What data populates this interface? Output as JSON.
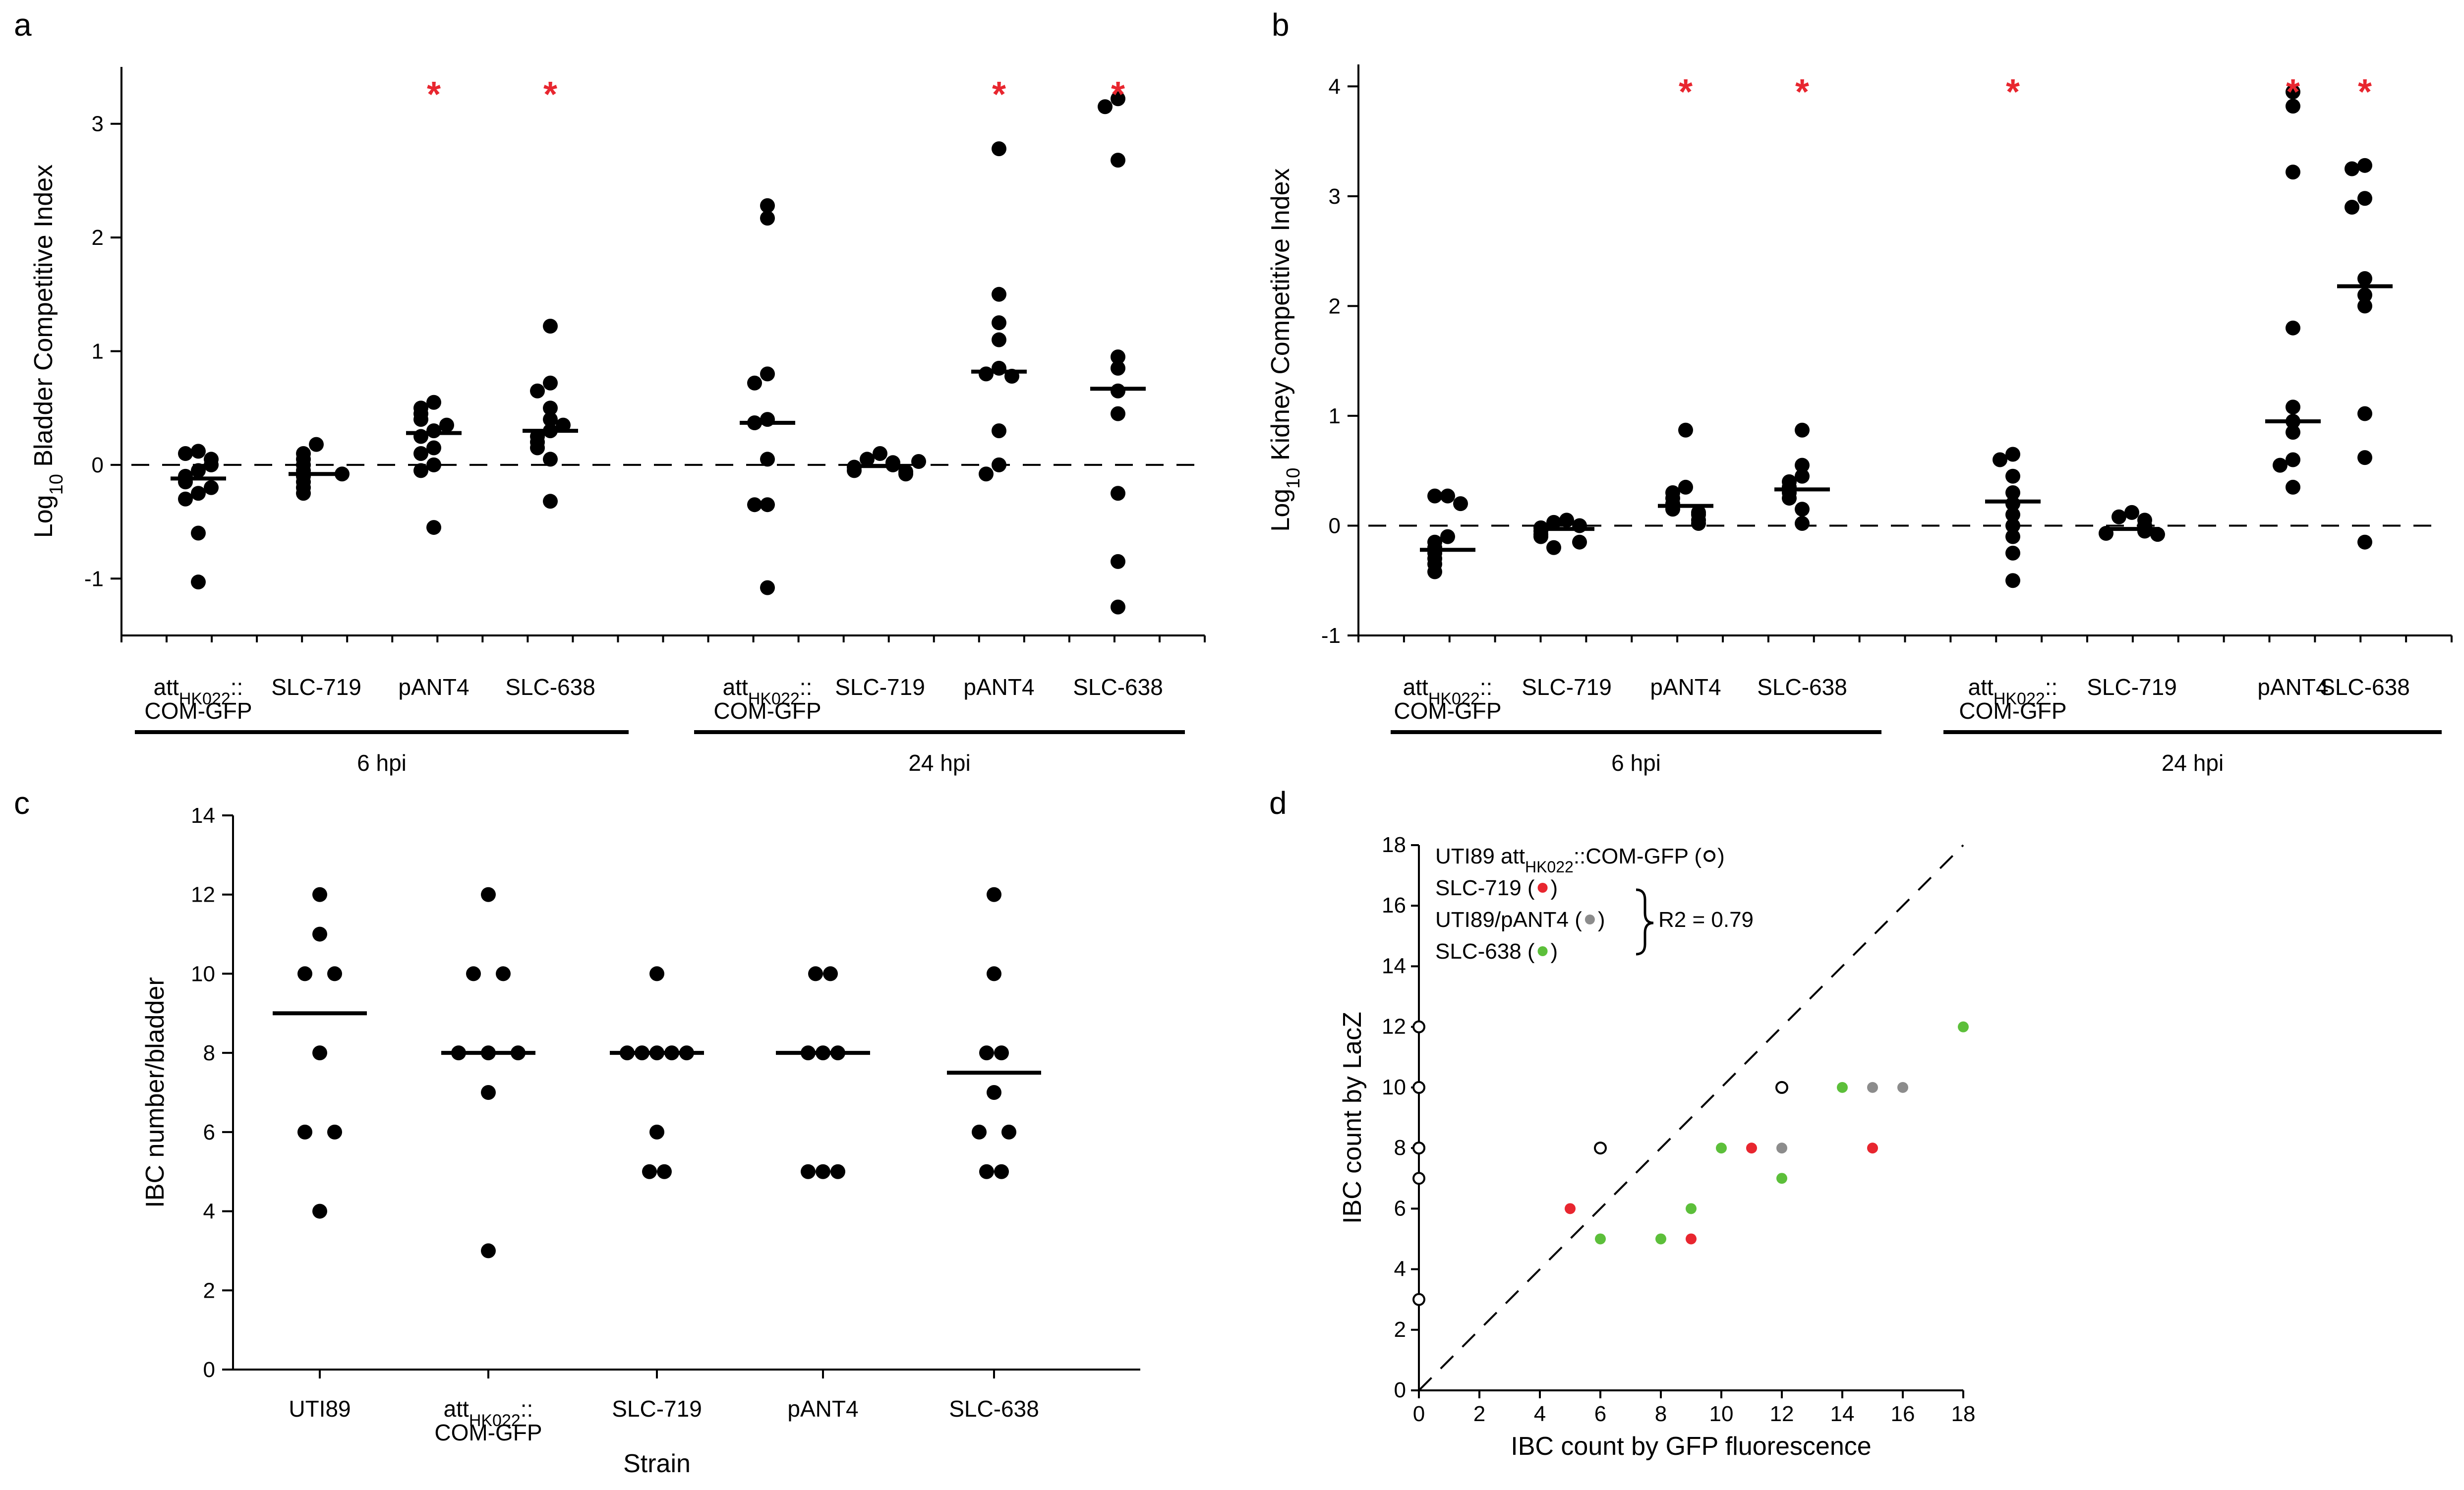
{
  "chart_data": [
    {
      "panel": "a",
      "type": "scatter",
      "ylabel_prefix": "Log",
      "ylabel_sub": "10",
      "ylabel_main": " Bladder Competitive Index",
      "ylim": [
        -1.5,
        3.5
      ],
      "yticks": [
        -1,
        0,
        1,
        2,
        3
      ],
      "yticklabels": [
        "-1",
        "0",
        "1",
        "2",
        "3"
      ],
      "groups": [
        {
          "label": "6 hpi",
          "categories": [
            {
              "label_lines": [
                {
                  "main": "att",
                  "sub": "HK022",
                  "tail": "::"
                },
                {
                  "main": "COM-GFP",
                  "sub": "",
                  "tail": ""
                }
              ],
              "values": [
                0.12,
                0.1,
                0.05,
                -0.05,
                -0.1,
                -0.15,
                -0.25,
                -0.3,
                -0.6,
                -1.03,
                0.0,
                -0.2
              ],
              "median": -0.12,
              "significant": false
            },
            {
              "label_lines": [
                {
                  "main": "SLC-719",
                  "sub": "",
                  "tail": ""
                }
              ],
              "values": [
                0.18,
                0.1,
                0.05,
                0.0,
                -0.05,
                -0.1,
                -0.15,
                -0.2,
                -0.25,
                -0.08
              ],
              "median": -0.08,
              "significant": false
            },
            {
              "label_lines": [
                {
                  "main": "pANT4",
                  "sub": "",
                  "tail": ""
                }
              ],
              "values": [
                0.55,
                0.5,
                0.45,
                0.4,
                0.3,
                0.25,
                0.15,
                0.1,
                0.0,
                -0.05,
                -0.55,
                0.35
              ],
              "median": 0.28,
              "significant": true
            },
            {
              "label_lines": [
                {
                  "main": "SLC-638",
                  "sub": "",
                  "tail": ""
                }
              ],
              "values": [
                1.22,
                0.72,
                0.65,
                0.5,
                0.4,
                0.3,
                0.25,
                0.2,
                0.15,
                0.05,
                -0.32,
                0.35
              ],
              "median": 0.3,
              "significant": true
            }
          ]
        },
        {
          "label": "24 hpi",
          "categories": [
            {
              "label_lines": [
                {
                  "main": "att",
                  "sub": "HK022",
                  "tail": "::"
                },
                {
                  "main": "COM-GFP",
                  "sub": "",
                  "tail": ""
                }
              ],
              "values": [
                2.28,
                2.17,
                0.8,
                0.72,
                0.4,
                0.37,
                0.05,
                -0.35,
                -0.35,
                -1.08
              ],
              "median": 0.37,
              "significant": false
            },
            {
              "label_lines": [
                {
                  "main": "SLC-719",
                  "sub": "",
                  "tail": ""
                }
              ],
              "values": [
                0.1,
                0.05,
                0.02,
                0.0,
                -0.02,
                -0.05,
                -0.06,
                -0.08,
                0.03
              ],
              "median": -0.01,
              "significant": false
            },
            {
              "label_lines": [
                {
                  "main": "pANT4",
                  "sub": "",
                  "tail": ""
                }
              ],
              "values": [
                2.78,
                1.5,
                1.25,
                1.1,
                0.85,
                0.8,
                0.78,
                0.3,
                0.0,
                -0.08
              ],
              "median": 0.82,
              "significant": true
            },
            {
              "label_lines": [
                {
                  "main": "SLC-638",
                  "sub": "",
                  "tail": ""
                }
              ],
              "values": [
                3.22,
                3.15,
                2.68,
                0.95,
                0.85,
                0.65,
                0.45,
                -0.25,
                -0.85,
                -1.25
              ],
              "median": 0.67,
              "significant": true
            }
          ]
        }
      ]
    },
    {
      "panel": "b",
      "type": "scatter",
      "ylabel_prefix": "Log",
      "ylabel_sub": "10",
      "ylabel_main": " Kidney Competitive Index",
      "ylim": [
        -1,
        4.2
      ],
      "yticks": [
        -1,
        0,
        1,
        2,
        3,
        4
      ],
      "yticklabels": [
        "-1",
        "0",
        "1",
        "2",
        "3",
        "4"
      ],
      "groups": [
        {
          "label": "6 hpi",
          "categories": [
            {
              "label_lines": [
                {
                  "main": "att",
                  "sub": "HK022",
                  "tail": "::"
                },
                {
                  "main": "COM-GFP",
                  "sub": "",
                  "tail": ""
                }
              ],
              "values": [
                0.27,
                0.27,
                0.2,
                -0.1,
                -0.15,
                -0.2,
                -0.25,
                -0.3,
                -0.35,
                -0.42
              ],
              "median": -0.22,
              "significant": false
            },
            {
              "label_lines": [
                {
                  "main": "SLC-719",
                  "sub": "",
                  "tail": ""
                }
              ],
              "values": [
                0.05,
                0.03,
                0.0,
                -0.02,
                -0.05,
                -0.08,
                -0.1,
                -0.15,
                -0.2
              ],
              "median": -0.03,
              "significant": false
            },
            {
              "label_lines": [
                {
                  "main": "pANT4",
                  "sub": "",
                  "tail": ""
                }
              ],
              "values": [
                0.87,
                0.35,
                0.3,
                0.25,
                0.2,
                0.15,
                0.12,
                0.1,
                0.05,
                0.02
              ],
              "median": 0.18,
              "significant": true
            },
            {
              "label_lines": [
                {
                  "main": "SLC-638",
                  "sub": "",
                  "tail": ""
                }
              ],
              "values": [
                0.87,
                0.55,
                0.45,
                0.4,
                0.35,
                0.3,
                0.25,
                0.15,
                0.02
              ],
              "median": 0.33,
              "significant": true
            }
          ]
        },
        {
          "label": "24 hpi",
          "categories": [
            {
              "label_lines": [
                {
                  "main": "att",
                  "sub": "HK022",
                  "tail": "::"
                },
                {
                  "main": "COM-GFP",
                  "sub": "",
                  "tail": ""
                }
              ],
              "values": [
                0.65,
                0.6,
                0.45,
                0.3,
                0.2,
                0.1,
                0.0,
                -0.1,
                -0.25,
                -0.5
              ],
              "median": 0.22,
              "significant": true
            },
            {
              "label_lines": [
                {
                  "main": "SLC-719",
                  "sub": "",
                  "tail": ""
                }
              ],
              "values": [
                0.12,
                0.08,
                0.05,
                0.0,
                -0.02,
                -0.05,
                -0.07,
                -0.08
              ],
              "median": -0.03,
              "significant": false
            },
            {
              "label_lines": [
                {
                  "main": "pANT4",
                  "sub": "",
                  "tail": ""
                }
              ],
              "values": [
                3.95,
                3.82,
                3.22,
                1.8,
                1.08,
                0.95,
                0.85,
                0.6,
                0.55,
                0.35
              ],
              "median": 0.95,
              "significant": true
            },
            {
              "label_lines": [
                {
                  "main": "SLC-638",
                  "sub": "",
                  "tail": ""
                }
              ],
              "values": [
                3.28,
                3.25,
                2.98,
                2.9,
                2.25,
                2.1,
                2.0,
                1.02,
                0.62,
                -0.15
              ],
              "median": 2.18,
              "significant": true
            }
          ]
        }
      ]
    },
    {
      "panel": "c",
      "type": "scatter",
      "xlabel": "Strain",
      "ylabel": "IBC number/bladder",
      "ylim": [
        0,
        14
      ],
      "yticks": [
        0,
        2,
        4,
        6,
        8,
        10,
        12,
        14
      ],
      "yticklabels": [
        "0",
        "2",
        "4",
        "6",
        "8",
        "10",
        "12",
        "14"
      ],
      "categories": [
        {
          "label_lines": [
            {
              "main": "UTI89",
              "sub": "",
              "tail": ""
            }
          ],
          "points": [
            [
              0,
              12
            ],
            [
              0,
              11
            ],
            [
              -1,
              10
            ],
            [
              1,
              10
            ],
            [
              0,
              8
            ],
            [
              -1,
              6
            ],
            [
              1,
              6
            ],
            [
              0,
              4
            ]
          ],
          "median": 9
        },
        {
          "label_lines": [
            {
              "main": "att",
              "sub": "HK022",
              "tail": "::"
            },
            {
              "main": "COM-GFP",
              "sub": "",
              "tail": ""
            }
          ],
          "points": [
            [
              0,
              12
            ],
            [
              -1,
              10
            ],
            [
              1,
              10
            ],
            [
              -2,
              8
            ],
            [
              0,
              8
            ],
            [
              2,
              8
            ],
            [
              0,
              7
            ],
            [
              0,
              3
            ]
          ],
          "median": 8
        },
        {
          "label_lines": [
            {
              "main": "SLC-719",
              "sub": "",
              "tail": ""
            }
          ],
          "points": [
            [
              0,
              10
            ],
            [
              -2,
              8
            ],
            [
              -1,
              8
            ],
            [
              0,
              8
            ],
            [
              1,
              8
            ],
            [
              2,
              8
            ],
            [
              0,
              6
            ],
            [
              -0.5,
              5
            ],
            [
              0.5,
              5
            ]
          ],
          "median": 8
        },
        {
          "label_lines": [
            {
              "main": "pANT4",
              "sub": "",
              "tail": ""
            }
          ],
          "points": [
            [
              -0.5,
              10
            ],
            [
              0.5,
              10
            ],
            [
              -1,
              8
            ],
            [
              0,
              8
            ],
            [
              1,
              8
            ],
            [
              -1,
              5
            ],
            [
              0,
              5
            ],
            [
              1,
              5
            ]
          ],
          "median": 8
        },
        {
          "label_lines": [
            {
              "main": "SLC-638",
              "sub": "",
              "tail": ""
            }
          ],
          "points": [
            [
              0,
              12
            ],
            [
              0,
              10
            ],
            [
              -0.5,
              8
            ],
            [
              0.5,
              8
            ],
            [
              0,
              7
            ],
            [
              -1,
              6
            ],
            [
              1,
              6
            ],
            [
              -0.5,
              5
            ],
            [
              0.5,
              5
            ]
          ],
          "median": 7.5
        }
      ]
    },
    {
      "panel": "d",
      "type": "scatter",
      "xlabel": "IBC count by GFP fluorescence",
      "ylabel": "IBC count by LacZ",
      "xlim": [
        0,
        18
      ],
      "ylim": [
        0,
        18
      ],
      "xticks": [
        0,
        2,
        4,
        6,
        8,
        10,
        12,
        14,
        16,
        18
      ],
      "xticklabels": [
        "0",
        "2",
        "4",
        "6",
        "8",
        "10",
        "12",
        "14",
        "16",
        "18"
      ],
      "yticks": [
        0,
        2,
        4,
        6,
        8,
        10,
        12,
        14,
        16,
        18
      ],
      "yticklabels": [
        "0",
        "2",
        "4",
        "6",
        "8",
        "10",
        "12",
        "14",
        "16",
        "18"
      ],
      "r2_label": "R2 = 0.79",
      "series": [
        {
          "name_prefix": "UTI89 att",
          "name_sub": "HK022",
          "name_suffix": "::COM-GFP (",
          "marker_close": ")",
          "color": "#000000",
          "marker": "open",
          "points": [
            [
              0,
              12
            ],
            [
              0,
              10
            ],
            [
              0,
              8
            ],
            [
              0,
              8
            ],
            [
              0,
              7
            ],
            [
              0,
              3
            ],
            [
              6,
              8
            ],
            [
              12,
              10
            ]
          ]
        },
        {
          "name_prefix": "SLC-719 (",
          "name_sub": "",
          "name_suffix": "",
          "marker_close": ")",
          "color": "#e8262f",
          "marker": "filled",
          "points": [
            [
              5,
              6
            ],
            [
              9,
              5
            ],
            [
              11,
              8
            ],
            [
              15,
              8
            ]
          ]
        },
        {
          "name_prefix": "UTI89/pANT4 (",
          "name_sub": "",
          "name_suffix": "",
          "marker_close": ")",
          "color": "#8c8c8c",
          "marker": "filled",
          "points": [
            [
              12,
              8
            ],
            [
              15,
              10
            ],
            [
              16,
              10
            ]
          ]
        },
        {
          "name_prefix": "SLC-638 (",
          "name_sub": "",
          "name_suffix": "",
          "marker_close": ")",
          "color": "#5cbf3a",
          "marker": "filled",
          "points": [
            [
              6,
              5
            ],
            [
              8,
              5
            ],
            [
              9,
              6
            ],
            [
              10,
              8
            ],
            [
              12,
              7
            ],
            [
              14,
              10
            ],
            [
              18,
              12
            ]
          ]
        }
      ]
    }
  ],
  "significance_marker": "*",
  "panel_letters": [
    "a",
    "b",
    "c",
    "d"
  ],
  "colors": {
    "significance": "#e8262f",
    "axis": "#000000"
  }
}
